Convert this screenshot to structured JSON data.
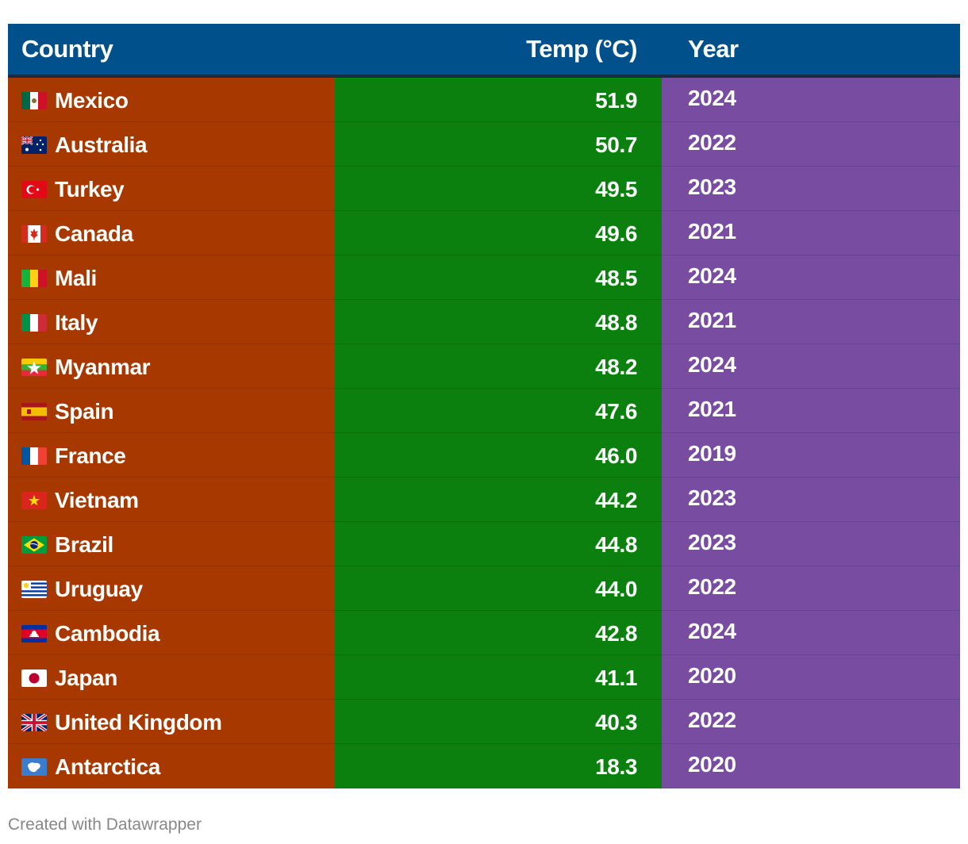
{
  "chart_data": {
    "type": "table",
    "columns": [
      "Country",
      "Temp (°C)",
      "Year"
    ],
    "rows": [
      {
        "country": "Mexico",
        "flag": "mexico-flag-icon",
        "temp": "51.9",
        "year": "2024"
      },
      {
        "country": "Australia",
        "flag": "australia-flag-icon",
        "temp": "50.7",
        "year": "2022"
      },
      {
        "country": "Turkey",
        "flag": "turkey-flag-icon",
        "temp": "49.5",
        "year": "2023"
      },
      {
        "country": "Canada",
        "flag": "canada-flag-icon",
        "temp": "49.6",
        "year": "2021"
      },
      {
        "country": "Mali",
        "flag": "mali-flag-icon",
        "temp": "48.5",
        "year": "2024"
      },
      {
        "country": "Italy",
        "flag": "italy-flag-icon",
        "temp": "48.8",
        "year": "2021"
      },
      {
        "country": "Myanmar",
        "flag": "myanmar-flag-icon",
        "temp": "48.2",
        "year": "2024"
      },
      {
        "country": "Spain",
        "flag": "spain-flag-icon",
        "temp": "47.6",
        "year": "2021"
      },
      {
        "country": "France",
        "flag": "france-flag-icon",
        "temp": "46.0",
        "year": "2019"
      },
      {
        "country": "Vietnam",
        "flag": "vietnam-flag-icon",
        "temp": "44.2",
        "year": "2023"
      },
      {
        "country": "Brazil",
        "flag": "brazil-flag-icon",
        "temp": "44.8",
        "year": "2023"
      },
      {
        "country": "Uruguay",
        "flag": "uruguay-flag-icon",
        "temp": "44.0",
        "year": "2022"
      },
      {
        "country": "Cambodia",
        "flag": "cambodia-flag-icon",
        "temp": "42.8",
        "year": "2024"
      },
      {
        "country": "Japan",
        "flag": "japan-flag-icon",
        "temp": "41.1",
        "year": "2020"
      },
      {
        "country": "United Kingdom",
        "flag": "united-kingdom-flag-icon",
        "temp": "40.3",
        "year": "2022"
      },
      {
        "country": "Antarctica",
        "flag": "antarctica-flag-icon",
        "temp": "18.3",
        "year": "2020"
      }
    ],
    "colors": {
      "header": "#00508c",
      "country_column": "#a63800",
      "temp_column": "#0b800e",
      "year_column": "#774ca1"
    }
  },
  "footer": {
    "credit": "Created with Datawrapper"
  }
}
